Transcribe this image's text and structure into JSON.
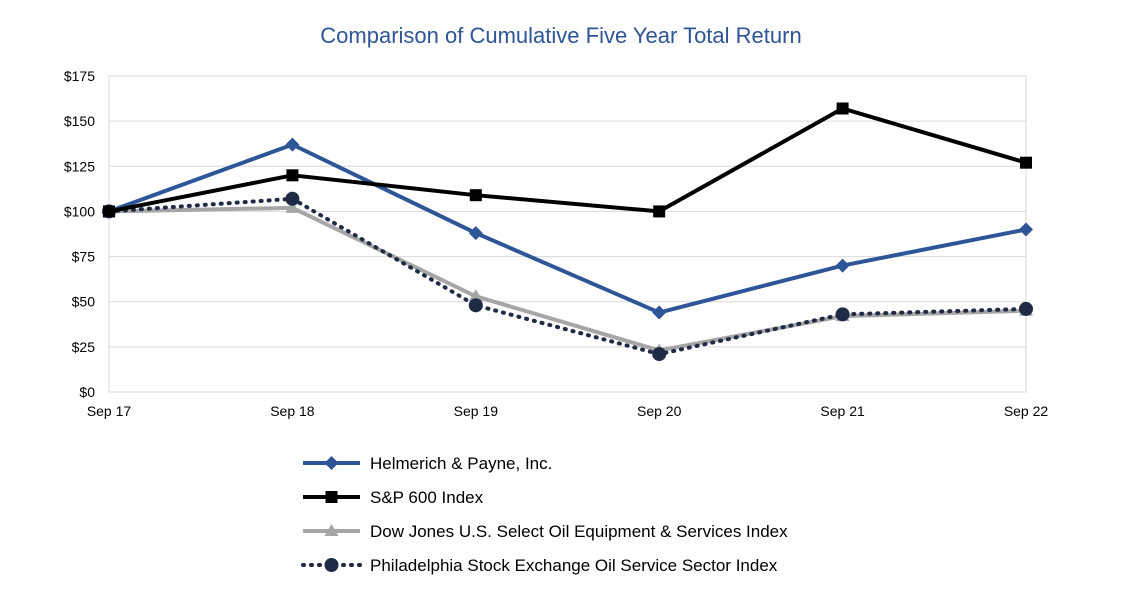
{
  "chart_data": {
    "type": "line",
    "title": "Comparison of Cumulative Five Year Total Return",
    "xlabel": "",
    "ylabel": "",
    "categories": [
      "Sep 17",
      "Sep 18",
      "Sep 19",
      "Sep 20",
      "Sep 21",
      "Sep 22"
    ],
    "y_ticks": [
      "$0",
      "$25",
      "$50",
      "$75",
      "$100",
      "$125",
      "$150",
      "$175"
    ],
    "ylim": [
      0,
      175
    ],
    "grid": true,
    "legend_position": "bottom",
    "series": [
      {
        "name": "Helmerich & Payne, Inc.",
        "values": [
          100,
          137,
          88,
          44,
          70,
          90
        ],
        "color": "#2E5597",
        "marker": "diamond",
        "line_style": "solid"
      },
      {
        "name": "S&P 600 Index",
        "values": [
          100,
          120,
          109,
          100,
          157,
          127
        ],
        "color": "#000000",
        "marker": "square",
        "line_style": "solid"
      },
      {
        "name": "Dow Jones U.S. Select Oil Equipment & Services Index",
        "values": [
          100,
          102,
          53,
          23,
          42,
          45
        ],
        "color": "#A6A6A6",
        "marker": "triangle",
        "line_style": "solid"
      },
      {
        "name": "Philadelphia Stock Exchange Oil Service Sector Index",
        "values": [
          100,
          107,
          48,
          21,
          43,
          46
        ],
        "color": "#1F2A44",
        "marker": "circle",
        "line_style": "dotted"
      }
    ]
  }
}
